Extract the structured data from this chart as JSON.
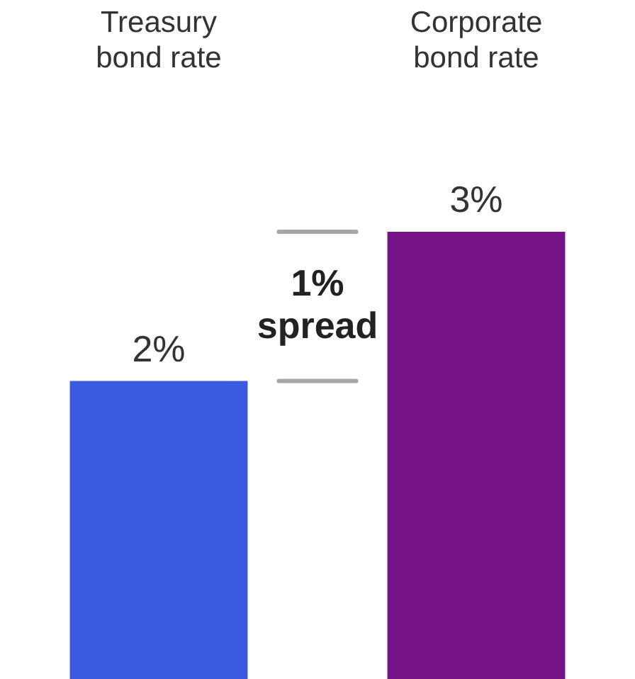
{
  "chart_data": {
    "type": "bar",
    "categories": [
      "Treasury bond rate",
      "Corporate bond rate"
    ],
    "colors": [
      "#3a5ae0",
      "#761487"
    ],
    "values": [
      2,
      3
    ],
    "value_labels": [
      "2%",
      "3%"
    ],
    "grid": false,
    "legend": false,
    "ref_lines": [
      {
        "axis": "y",
        "value": 3,
        "color": "#a6a6a6"
      },
      {
        "axis": "y",
        "value": 2,
        "color": "#a6a6a6"
      }
    ],
    "annotations": [
      "1% spread"
    ]
  }
}
